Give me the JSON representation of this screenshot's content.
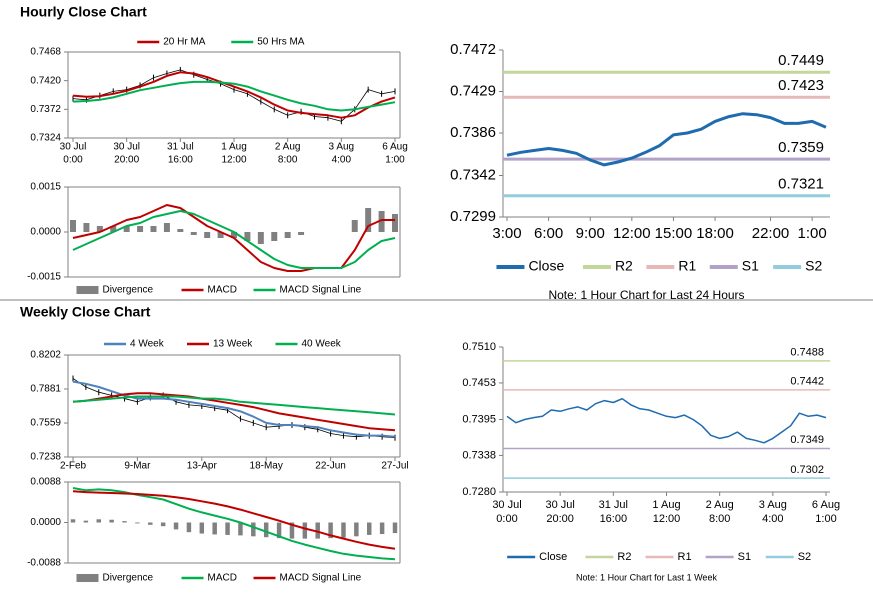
{
  "headings": [
    "Hourly Close Chart",
    "Weekly Close Chart"
  ],
  "chart_data": [
    {
      "type": "line",
      "legend": "top",
      "categories": [
        [
          "30 Jul",
          "0:00"
        ],
        null,
        null,
        null,
        [
          "30 Jul",
          "20:00"
        ],
        null,
        null,
        null,
        [
          "31 Jul",
          "16:00"
        ],
        null,
        null,
        null,
        [
          "1 Aug",
          "12:00"
        ],
        null,
        null,
        null,
        [
          "2 Aug",
          "8:00"
        ],
        null,
        null,
        null,
        [
          "3 Aug",
          "4:00"
        ],
        null,
        null,
        null,
        [
          "6 Aug",
          "1:00"
        ]
      ],
      "price": {
        "color": "#000000",
        "values": [
          0.739,
          0.7388,
          0.7395,
          0.7402,
          0.7405,
          0.7412,
          0.7425,
          0.7432,
          0.7438,
          0.743,
          0.7422,
          0.7415,
          0.7405,
          0.7398,
          0.7385,
          0.7372,
          0.7362,
          0.7368,
          0.736,
          0.7358,
          0.7352,
          0.7372,
          0.7405,
          0.7398,
          0.7402
        ]
      },
      "series": [
        {
          "name": "20 Hr MA",
          "color": "#c00000",
          "values": [
            0.7395,
            0.7393,
            0.7394,
            0.7398,
            0.7403,
            0.741,
            0.7418,
            0.7428,
            0.7434,
            0.7432,
            0.7426,
            0.7418,
            0.741,
            0.7402,
            0.7392,
            0.738,
            0.737,
            0.7366,
            0.7364,
            0.7362,
            0.7358,
            0.7362,
            0.7375,
            0.7385,
            0.7392
          ]
        },
        {
          "name": "50 Hrs MA",
          "color": "#00b050",
          "values": [
            0.7385,
            0.7386,
            0.7388,
            0.7392,
            0.7398,
            0.7404,
            0.7408,
            0.7412,
            0.7416,
            0.7418,
            0.7418,
            0.7417,
            0.7415,
            0.741,
            0.7402,
            0.7395,
            0.7388,
            0.7382,
            0.7378,
            0.7372,
            0.737,
            0.7372,
            0.7376,
            0.738,
            0.7384
          ]
        }
      ],
      "ylim": [
        0.7324,
        0.7468
      ],
      "yticks": [
        0.7468,
        {
          "value": 0.742,
          "label": "0.7420"
        },
        0.7372,
        0.7324
      ]
    },
    {
      "type": "combo",
      "legend": "bottom",
      "series": [
        {
          "name": "Divergence",
          "type": "bar",
          "color": "#808080",
          "values": [
            0.0004,
            0.0003,
            0.0002,
            0.0002,
            0.0002,
            0.0002,
            0.0002,
            0.0003,
            0.0001,
            -0.0001,
            -0.0002,
            -0.0002,
            -0.0002,
            -0.0003,
            -0.0004,
            -0.0003,
            -0.0002,
            -0.0001,
            0,
            0,
            0,
            0.0004,
            0.0008,
            0.0007,
            0.0006
          ]
        },
        {
          "name": "MACD",
          "type": "line",
          "color": "#c00000",
          "values": [
            -0.0002,
            -0.0001,
            0,
            0.0002,
            0.0004,
            0.0005,
            0.0007,
            0.0009,
            0.0008,
            0.0005,
            0.0002,
            0,
            -0.0002,
            -0.0006,
            -0.001,
            -0.0012,
            -0.0013,
            -0.0013,
            -0.0012,
            -0.0012,
            -0.0012,
            -0.0006,
            0.0002,
            0.0004,
            0.0004
          ]
        },
        {
          "name": "MACD Signal Line",
          "type": "line",
          "color": "#00b050",
          "values": [
            -0.0006,
            -0.0004,
            -0.0002,
            0,
            0.0002,
            0.0003,
            0.0005,
            0.0006,
            0.0007,
            0.0006,
            0.0004,
            0.0002,
            0,
            -0.0003,
            -0.0006,
            -0.0009,
            -0.0011,
            -0.0012,
            -0.0012,
            -0.0012,
            -0.0012,
            -0.001,
            -0.0006,
            -0.0003,
            -0.0002
          ]
        }
      ],
      "ylim": [
        -0.0015,
        0.0015
      ],
      "yticks": [
        0.0015,
        {
          "value": 0,
          "label": "0.0000"
        },
        -0.0015
      ]
    },
    {
      "type": "line",
      "legend": "bottom",
      "note": "Note: 1 Hour Chart for Last 24 Hours",
      "categories": [
        "3:00",
        null,
        null,
        "6:00",
        null,
        null,
        "9:00",
        null,
        null,
        "12:00",
        null,
        null,
        "15:00",
        null,
        null,
        "18:00",
        null,
        null,
        null,
        "22:00",
        null,
        null,
        "1:00",
        null
      ],
      "series": [
        {
          "name": "Close",
          "color": "#1f6bb0",
          "values": [
            0.7363,
            0.7366,
            0.7368,
            0.737,
            0.7368,
            0.7365,
            0.7358,
            0.7353,
            0.7356,
            0.736,
            0.7366,
            0.7373,
            0.7384,
            0.7386,
            0.739,
            0.7398,
            0.7403,
            0.7406,
            0.7405,
            0.7402,
            0.7396,
            0.7396,
            0.7398,
            0.7392
          ]
        }
      ],
      "levels": [
        {
          "name": "R2",
          "color": "#c3d69b",
          "value": 0.7449
        },
        {
          "name": "R1",
          "color": "#e6b9b8",
          "value": 0.7423
        },
        {
          "name": "S1",
          "color": "#b3a2c7",
          "value": 0.7359
        },
        {
          "name": "S2",
          "color": "#93cddd",
          "value": 0.7321
        }
      ],
      "ylim": [
        0.7299,
        0.7472
      ],
      "yticks": [
        0.7472,
        0.7429,
        0.7386,
        0.7342,
        0.7299
      ]
    },
    {
      "type": "line",
      "legend": "top",
      "categories": [
        "2-Feb",
        null,
        null,
        null,
        null,
        "9-Mar",
        null,
        null,
        null,
        null,
        "13-Apr",
        null,
        null,
        null,
        null,
        "18-May",
        null,
        null,
        null,
        null,
        "22-Jun",
        null,
        null,
        null,
        null,
        "27-Jul"
      ],
      "price": {
        "color": "#000000",
        "values": [
          0.798,
          0.79,
          0.785,
          0.782,
          0.779,
          0.776,
          0.78,
          0.782,
          0.776,
          0.773,
          0.772,
          0.77,
          0.768,
          0.76,
          0.756,
          0.752,
          0.753,
          0.754,
          0.752,
          0.75,
          0.746,
          0.744,
          0.743,
          0.744,
          0.743,
          0.742
        ]
      },
      "series": [
        {
          "name": "4 Week",
          "color": "#4f81bd",
          "values": [
            0.795,
            0.793,
            0.79,
            0.786,
            0.782,
            0.779,
            0.779,
            0.779,
            0.778,
            0.776,
            0.774,
            0.772,
            0.77,
            0.767,
            0.762,
            0.756,
            0.754,
            0.754,
            0.753,
            0.752,
            0.749,
            0.747,
            0.745,
            0.744,
            0.744,
            0.743
          ]
        },
        {
          "name": "13 Week",
          "color": "#c00000",
          "values": [
            0.776,
            0.777,
            0.779,
            0.781,
            0.783,
            0.784,
            0.784,
            0.783,
            0.782,
            0.781,
            0.779,
            0.777,
            0.775,
            0.773,
            0.771,
            0.768,
            0.765,
            0.763,
            0.761,
            0.759,
            0.757,
            0.755,
            0.753,
            0.751,
            0.75,
            0.749
          ]
        },
        {
          "name": "40 Week",
          "color": "#00b050",
          "values": [
            0.776,
            0.777,
            0.778,
            0.779,
            0.78,
            0.781,
            0.781,
            0.781,
            0.781,
            0.78,
            0.779,
            0.779,
            0.778,
            0.776,
            0.775,
            0.774,
            0.773,
            0.772,
            0.771,
            0.77,
            0.769,
            0.768,
            0.767,
            0.766,
            0.765,
            0.764
          ]
        }
      ],
      "ylim": [
        0.7238,
        0.8202
      ],
      "yticks": [
        0.8202,
        0.7881,
        0.7559,
        0.7238
      ]
    },
    {
      "type": "combo",
      "legend": "bottom",
      "series": [
        {
          "name": "Divergence",
          "type": "bar",
          "color": "#808080",
          "values": [
            0.0007,
            0.0004,
            0.0007,
            0.0006,
            0.0003,
            -0.0002,
            -0.0005,
            -0.0008,
            -0.0015,
            -0.0021,
            -0.0024,
            -0.0026,
            -0.0027,
            -0.0028,
            -0.003,
            -0.0032,
            -0.0034,
            -0.0035,
            -0.0035,
            -0.0035,
            -0.0034,
            -0.0033,
            -0.003,
            -0.0027,
            -0.0025,
            -0.0023
          ]
        },
        {
          "name": "MACD",
          "type": "line",
          "color": "#00b050",
          "values": [
            0.0075,
            0.007,
            0.0072,
            0.007,
            0.0066,
            0.006,
            0.0055,
            0.005,
            0.004,
            0.003,
            0.0022,
            0.0015,
            0.0008,
            0,
            -0.001,
            -0.002,
            -0.003,
            -0.004,
            -0.0048,
            -0.0055,
            -0.0062,
            -0.0068,
            -0.0072,
            -0.0075,
            -0.0078,
            -0.008
          ]
        },
        {
          "name": "MACD Signal Line",
          "type": "line",
          "color": "#c00000",
          "values": [
            0.0068,
            0.0066,
            0.0065,
            0.0064,
            0.0063,
            0.0062,
            0.006,
            0.0058,
            0.0055,
            0.0051,
            0.0046,
            0.0041,
            0.0035,
            0.0028,
            0.002,
            0.0012,
            0.0004,
            -0.0005,
            -0.0013,
            -0.002,
            -0.0028,
            -0.0035,
            -0.0042,
            -0.0048,
            -0.0053,
            -0.0057
          ]
        }
      ],
      "ylim": [
        -0.0088,
        0.0088
      ],
      "yticks": [
        0.0088,
        {
          "value": 0,
          "label": "0.0000"
        },
        -0.0088
      ]
    },
    {
      "type": "line",
      "legend": "bottom",
      "note": "Note: 1 Hour Chart for Last 1 Week",
      "categories": [
        [
          "30 Jul",
          "0:00"
        ],
        null,
        null,
        null,
        null,
        null,
        [
          "30 Jul",
          "20:00"
        ],
        null,
        null,
        null,
        null,
        null,
        [
          "31 Jul",
          "16:00"
        ],
        null,
        null,
        null,
        null,
        null,
        [
          "1 Aug",
          "12:00"
        ],
        null,
        null,
        null,
        null,
        null,
        [
          "2 Aug",
          "8:00"
        ],
        null,
        null,
        null,
        null,
        null,
        [
          "3 Aug",
          "4:00"
        ],
        null,
        null,
        null,
        null,
        null,
        [
          "6 Aug",
          "1:00"
        ]
      ],
      "series": [
        {
          "name": "Close",
          "color": "#1f6bb0",
          "values": [
            0.74,
            0.739,
            0.7395,
            0.7398,
            0.74,
            0.741,
            0.7408,
            0.7412,
            0.7415,
            0.741,
            0.742,
            0.7425,
            0.7422,
            0.7428,
            0.7418,
            0.7412,
            0.741,
            0.7405,
            0.74,
            0.7398,
            0.7402,
            0.7395,
            0.7385,
            0.737,
            0.7365,
            0.7368,
            0.7375,
            0.7365,
            0.7362,
            0.7358,
            0.7365,
            0.7375,
            0.7385,
            0.7405,
            0.74,
            0.7402,
            0.7398
          ]
        }
      ],
      "levels": [
        {
          "name": "R2",
          "color": "#c3d69b",
          "value": 0.7488
        },
        {
          "name": "R1",
          "color": "#e6b9b8",
          "value": 0.7442
        },
        {
          "name": "S1",
          "color": "#b3a2c7",
          "value": 0.7349
        },
        {
          "name": "S2",
          "color": "#93cddd",
          "value": 0.7302
        }
      ],
      "ylim": [
        0.728,
        0.751
      ],
      "yticks": [
        {
          "value": 0.751,
          "label": "0.7510"
        },
        0.7453,
        0.7395,
        0.7338,
        {
          "value": 0.728,
          "label": "0.7280"
        }
      ]
    }
  ]
}
